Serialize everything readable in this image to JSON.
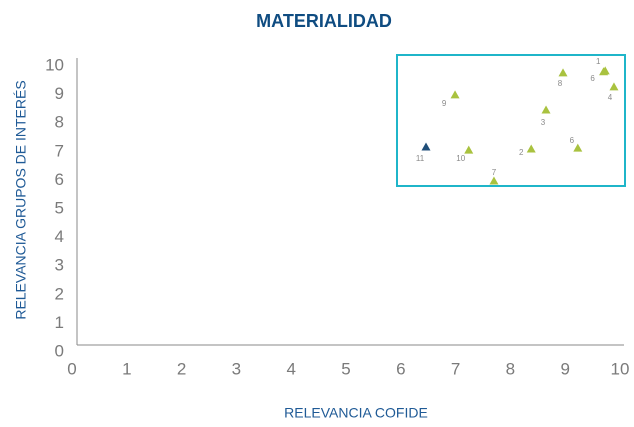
{
  "chart_data": {
    "type": "scatter",
    "title": "MATERIALIDAD",
    "xlabel": "RELEVANCIA COFIDE",
    "ylabel": "RELEVANCIA GRUPOS DE INTERÉS",
    "xlim": [
      0,
      10
    ],
    "ylim": [
      0,
      10
    ],
    "xticks": [
      0,
      1,
      2,
      3,
      4,
      5,
      6,
      7,
      8,
      9,
      10
    ],
    "yticks": [
      0,
      1,
      2,
      3,
      4,
      5,
      6,
      7,
      8,
      9,
      10
    ],
    "grid": false,
    "series": [
      {
        "x": [
          9.73,
          9.7,
          9.89,
          8.96,
          6.99,
          8.65,
          9.23,
          8.38,
          7.24,
          6.46,
          7.7
        ],
        "values": [
          9.83,
          9.8,
          9.27,
          9.76,
          8.99,
          8.46,
          7.13,
          7.1,
          7.06,
          7.17,
          5.98
        ],
        "labels": [
          "1",
          "6",
          "4",
          "8",
          "9",
          "3",
          "6",
          "2",
          "10",
          "11",
          "7"
        ],
        "colors": [
          "#a9c23f",
          "#a9c23f",
          "#a9c23f",
          "#a9c23f",
          "#a9c23f",
          "#a9c23f",
          "#a9c23f",
          "#a9c23f",
          "#a9c23f",
          "#1f4e79",
          "#a9c23f"
        ]
      }
    ]
  }
}
